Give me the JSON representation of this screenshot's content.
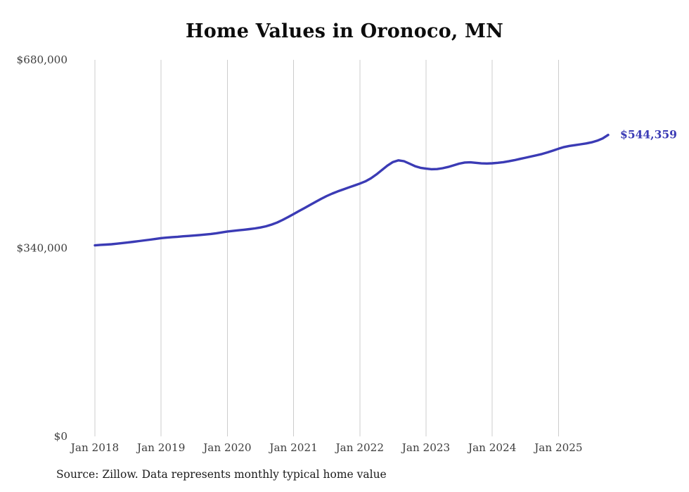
{
  "chart_data": {
    "type": "line",
    "title": "Home Values in Oronoco, MN",
    "source_note": "Source: Zillow. Data represents monthly typical home value",
    "latest_value_label": "$544,359",
    "ylim": [
      0,
      680000
    ],
    "grid": "vertical-only",
    "legend": "none",
    "colors": {
      "line": "#3b3bb5",
      "grid": "#cccccc",
      "tick_text": "#3d3d3d",
      "title_text": "#0c0c0c",
      "source_text": "#1b1b1b"
    },
    "y_ticks": [
      {
        "value": 0,
        "label": "$0"
      },
      {
        "value": 340000,
        "label": "$340,000"
      },
      {
        "value": 680000,
        "label": "$680,000"
      }
    ],
    "x_ticks": [
      {
        "month_index": 0,
        "label": "Jan 2018"
      },
      {
        "month_index": 12,
        "label": "Jan 2019"
      },
      {
        "month_index": 24,
        "label": "Jan 2020"
      },
      {
        "month_index": 36,
        "label": "Jan 2021"
      },
      {
        "month_index": 48,
        "label": "Jan 2022"
      },
      {
        "month_index": 60,
        "label": "Jan 2023"
      },
      {
        "month_index": 72,
        "label": "Jan 2024"
      },
      {
        "month_index": 84,
        "label": "Jan 2025"
      }
    ],
    "series": [
      {
        "name": "Typical home value",
        "start": "Jan 2018",
        "values": [
          345000,
          345800,
          346300,
          347000,
          348000,
          349100,
          350300,
          351500,
          352700,
          354000,
          355300,
          356600,
          358000,
          359000,
          359800,
          360500,
          361300,
          362000,
          362800,
          363600,
          364500,
          365500,
          366800,
          368300,
          370000,
          371000,
          372100,
          373200,
          374300,
          375600,
          377200,
          379400,
          382400,
          386200,
          390800,
          396000,
          401500,
          407000,
          412500,
          418000,
          423500,
          429000,
          434000,
          438500,
          442500,
          446000,
          449500,
          453000,
          456500,
          460500,
          466000,
          473000,
          481000,
          489000,
          495500,
          498500,
          497000,
          492500,
          488000,
          485000,
          483500,
          482500,
          482800,
          484200,
          486500,
          489500,
          492500,
          494500,
          495000,
          494000,
          493000,
          492800,
          493200,
          494000,
          495200,
          496800,
          498800,
          501000,
          503200,
          505400,
          507600,
          510000,
          512800,
          516000,
          519500,
          522500,
          524500,
          526000,
          527500,
          529000,
          531000,
          534000,
          538000,
          544359
        ]
      }
    ]
  }
}
